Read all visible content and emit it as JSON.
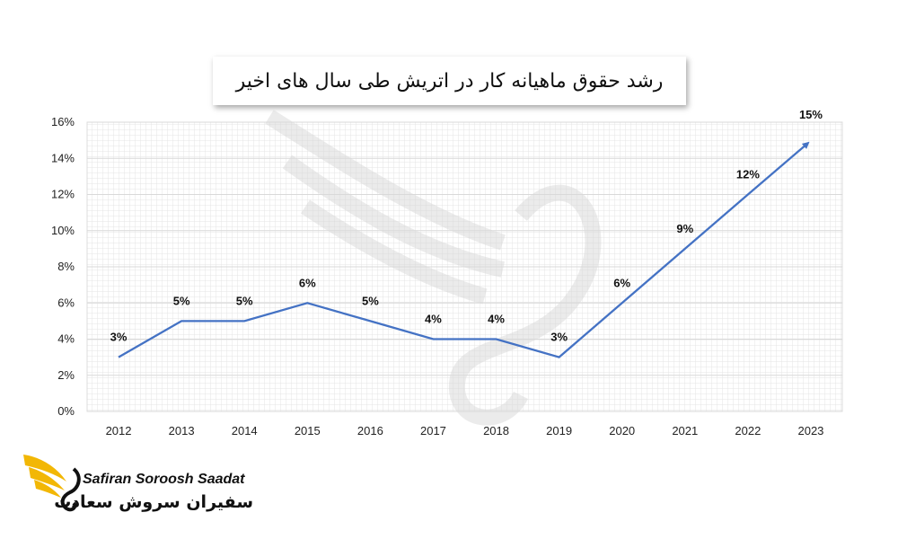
{
  "chart_data": {
    "type": "line",
    "title": "رشد حقوق ماهیانه کار در اتریش طی سال های اخیر",
    "categories": [
      "2012",
      "2013",
      "2014",
      "2015",
      "2016",
      "2017",
      "2018",
      "2019",
      "2020",
      "2021",
      "2022",
      "2023"
    ],
    "values": [
      3,
      5,
      5,
      6,
      5,
      4,
      4,
      3,
      6,
      9,
      12,
      15
    ],
    "data_labels": [
      "3%",
      "5%",
      "5%",
      "6%",
      "5%",
      "4%",
      "4%",
      "3%",
      "6%",
      "9%",
      "12%",
      "15%"
    ],
    "y_ticks": [
      "0%",
      "2%",
      "4%",
      "6%",
      "8%",
      "10%",
      "12%",
      "14%",
      "16%"
    ],
    "ylim": [
      0,
      16
    ],
    "grid": true,
    "line_color": "#4472C4",
    "end_arrow": true
  },
  "logo": {
    "name_en": "Safiran Soroosh Saadat",
    "name_fa": "سفیران سروش سعادت",
    "colors": {
      "wing": "#F2B705",
      "text": "#111111"
    }
  }
}
